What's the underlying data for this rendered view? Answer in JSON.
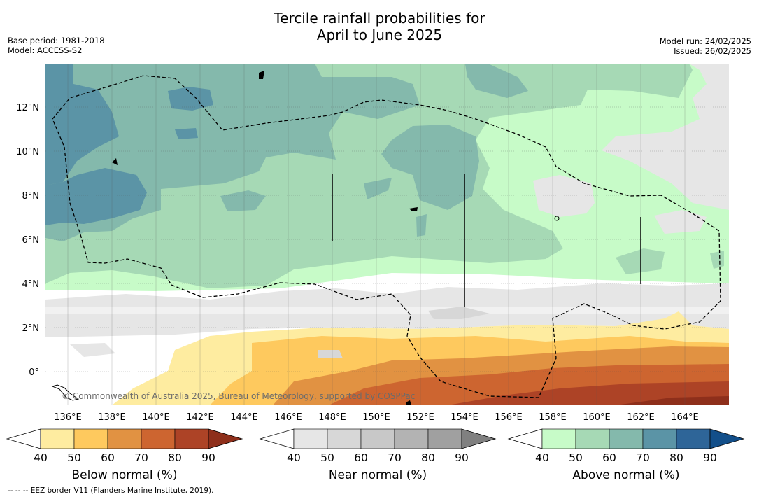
{
  "title_line1": "Tercile rainfall probabilities for",
  "title_line2": "April to June 2025",
  "base_period": "Base period: 1981-2018",
  "model": "Model: ACCESS-S2",
  "model_run": "Model run: 24/02/2025",
  "issued": "Issued: 26/02/2025",
  "lat_labels": [
    "12°N",
    "10°N",
    "8°N",
    "6°N",
    "4°N",
    "2°N",
    "0°"
  ],
  "lon_labels": [
    "136°E",
    "138°E",
    "140°E",
    "142°E",
    "144°E",
    "146°E",
    "148°E",
    "150°E",
    "152°E",
    "154°E",
    "156°E",
    "158°E",
    "160°E",
    "162°E",
    "164°E"
  ],
  "copyright": "© Commonwealth of Australia 2025, Bureau of Meteorology, supported by COSPPac",
  "colorbars": [
    {
      "title": "Below normal (%)",
      "ticks": [
        "40",
        "50",
        "60",
        "70",
        "80",
        "90"
      ],
      "colors": [
        "#ffffff",
        "#feeca0",
        "#fec95e",
        "#e19242",
        "#cd6530",
        "#ad4326",
        "#8e2f1b"
      ]
    },
    {
      "title": "Near normal (%)",
      "ticks": [
        "40",
        "50",
        "60",
        "70",
        "80",
        "90"
      ],
      "colors": [
        "#ffffff",
        "#e6e6e6",
        "#d7d7d7",
        "#c8c8c8",
        "#b3b3b3",
        "#a0a0a0",
        "#808080"
      ]
    },
    {
      "title": "Above normal (%)",
      "ticks": [
        "40",
        "50",
        "60",
        "70",
        "80",
        "90"
      ],
      "colors": [
        "#ffffff",
        "#c7fbc8",
        "#a6d9b5",
        "#84b9ac",
        "#5b94a6",
        "#2e6598",
        "#134f8a"
      ]
    }
  ],
  "footnote": "--  --  -- EEZ border V11 (Flanders Marine Institute, 2019)."
}
